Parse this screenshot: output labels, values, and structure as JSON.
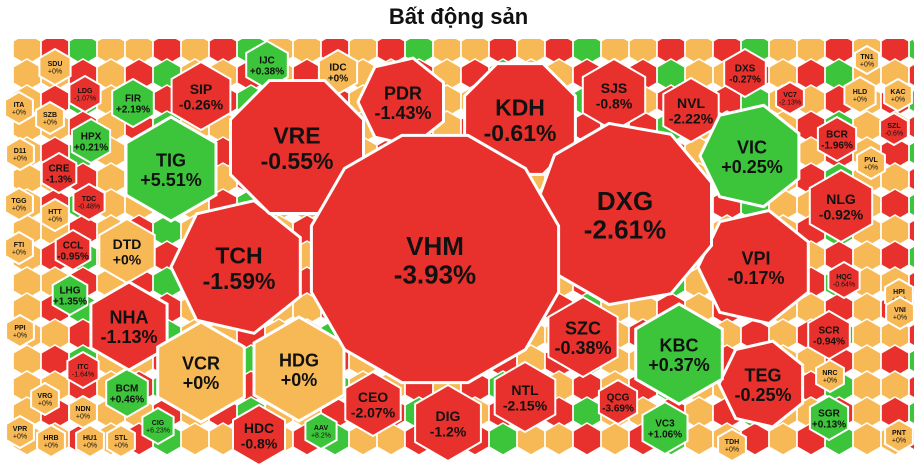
{
  "title": "Bất động sản",
  "colors": {
    "up": "#3cc43a",
    "down": "#e8312c",
    "flat": "#f7b955",
    "ceiling": "#c23bd9",
    "floor": "#2fa8e0",
    "border": "#ffffff",
    "text": "#111111"
  },
  "chart_data": {
    "type": "treemap",
    "title": "Bất động sản",
    "items": [
      {
        "symbol": "VHM",
        "change": "-3.93%",
        "status": "down",
        "size": 10
      },
      {
        "symbol": "DXG",
        "change": "-2.61%",
        "status": "down",
        "size": 7
      },
      {
        "symbol": "VRE",
        "change": "-0.55%",
        "status": "down",
        "size": 6
      },
      {
        "symbol": "TCH",
        "change": "-1.59%",
        "status": "down",
        "size": 5
      },
      {
        "symbol": "KDH",
        "change": "-0.61%",
        "status": "down",
        "size": 5
      },
      {
        "symbol": "VPI",
        "change": "-0.17%",
        "status": "down",
        "size": 4
      },
      {
        "symbol": "HDG",
        "change": "+0%",
        "status": "flat",
        "size": 3
      },
      {
        "symbol": "VCR",
        "change": "+0%",
        "status": "flat",
        "size": 3
      },
      {
        "symbol": "TIG",
        "change": "+5.51%",
        "status": "up",
        "size": 3
      },
      {
        "symbol": "VIC",
        "change": "+0.25%",
        "status": "up",
        "size": 3
      },
      {
        "symbol": "KBC",
        "change": "+0.37%",
        "status": "up",
        "size": 3
      },
      {
        "symbol": "PDR",
        "change": "-1.43%",
        "status": "down",
        "size": 3
      },
      {
        "symbol": "NHA",
        "change": "-1.13%",
        "status": "down",
        "size": 2
      },
      {
        "symbol": "TEG",
        "change": "-0.25%",
        "status": "down",
        "size": 2
      },
      {
        "symbol": "SZC",
        "change": "-0.38%",
        "status": "down",
        "size": 2
      },
      {
        "symbol": "DIG",
        "change": "-1.2%",
        "status": "down",
        "size": 2
      },
      {
        "symbol": "NLG",
        "change": "-0.92%",
        "status": "down",
        "size": 2
      },
      {
        "symbol": "SIP",
        "change": "-0.26%",
        "status": "down",
        "size": 2
      },
      {
        "symbol": "SJS",
        "change": "-0.8%",
        "status": "down",
        "size": 2
      },
      {
        "symbol": "NVL",
        "change": "-2.22%",
        "status": "down",
        "size": 1.5
      },
      {
        "symbol": "NTL",
        "change": "-2.15%",
        "status": "down",
        "size": 1.5
      },
      {
        "symbol": "CEO",
        "change": "-2.07%",
        "status": "down",
        "size": 1.5
      },
      {
        "symbol": "HDC",
        "change": "-0.8%",
        "status": "down",
        "size": 1.5
      },
      {
        "symbol": "DTD",
        "change": "+0%",
        "status": "flat",
        "size": 1.5
      },
      {
        "symbol": "DXS",
        "change": "-0.27%",
        "status": "down",
        "size": 1
      },
      {
        "symbol": "IJC",
        "change": "+0.38%",
        "status": "up",
        "size": 1
      },
      {
        "symbol": "IDC",
        "change": "+0%",
        "status": "flat",
        "size": 1
      },
      {
        "symbol": "SCR",
        "change": "-0.94%",
        "status": "down",
        "size": 1
      },
      {
        "symbol": "QCG",
        "change": "-3.69%",
        "status": "down",
        "size": 1
      },
      {
        "symbol": "VC3",
        "change": "+1.06%",
        "status": "up",
        "size": 1
      },
      {
        "symbol": "BCM",
        "change": "+0.46%",
        "status": "up",
        "size": 1
      },
      {
        "symbol": "FIR",
        "change": "+2.19%",
        "status": "up",
        "size": 1
      },
      {
        "symbol": "HPX",
        "change": "+0.21%",
        "status": "up",
        "size": 1
      },
      {
        "symbol": "BCR",
        "change": "-1.96%",
        "status": "down",
        "size": 1
      },
      {
        "symbol": "CRE",
        "change": "-1.3%",
        "status": "down",
        "size": 1
      },
      {
        "symbol": "CCL",
        "change": "-0.95%",
        "status": "down",
        "size": 1
      },
      {
        "symbol": "SGR",
        "change": "+0.13%",
        "status": "up",
        "size": 1
      },
      {
        "symbol": "LHG",
        "change": "+1.35%",
        "status": "up",
        "size": 1
      },
      {
        "symbol": "HQC",
        "change": "-0.64%",
        "status": "down",
        "size": 1
      },
      {
        "symbol": "HLD",
        "change": "+0%",
        "status": "flat",
        "size": 1
      },
      {
        "symbol": "NRC",
        "change": "+0%",
        "status": "flat",
        "size": 1
      },
      {
        "symbol": "AAV",
        "change": "+8.2%",
        "status": "up",
        "size": 1
      },
      {
        "symbol": "CIG",
        "change": "+6.23%",
        "status": "up",
        "size": 1
      },
      {
        "symbol": "LDG",
        "change": "-1.07%",
        "status": "down",
        "size": 1
      },
      {
        "symbol": "TDC",
        "change": "-0.48%",
        "status": "down",
        "size": 1
      },
      {
        "symbol": "ITC",
        "change": "-1.64%",
        "status": "down",
        "size": 1
      },
      {
        "symbol": "SZB",
        "change": "+0%",
        "status": "flat",
        "size": 1
      },
      {
        "symbol": "SDU",
        "change": "+0%",
        "status": "flat",
        "size": 1
      },
      {
        "symbol": "HTT",
        "change": "+0%",
        "status": "flat",
        "size": 1
      },
      {
        "symbol": "VRG",
        "change": "+0%",
        "status": "flat",
        "size": 1
      },
      {
        "symbol": "NDN",
        "change": "+0%",
        "status": "flat",
        "size": 1
      },
      {
        "symbol": "HRB",
        "change": "+0%",
        "status": "flat",
        "size": 1
      },
      {
        "symbol": "VPR",
        "change": "+0%",
        "status": "flat",
        "size": 1
      },
      {
        "symbol": "PPI",
        "change": "+0%",
        "status": "flat",
        "size": 1
      },
      {
        "symbol": "FTI",
        "change": "+0%",
        "status": "flat",
        "size": 1
      },
      {
        "symbol": "TGG",
        "change": "+0%",
        "status": "flat",
        "size": 1
      },
      {
        "symbol": "D11",
        "change": "+0%",
        "status": "flat",
        "size": 1
      },
      {
        "symbol": "ITA",
        "change": "+0%",
        "status": "flat",
        "size": 1
      },
      {
        "symbol": "KAC",
        "change": "+0%",
        "status": "flat",
        "size": 1
      },
      {
        "symbol": "PVL",
        "change": "+0%",
        "status": "flat",
        "size": 1
      },
      {
        "symbol": "HPI",
        "change": "+0%",
        "status": "flat",
        "size": 1
      },
      {
        "symbol": "VNI",
        "change": "+0%",
        "status": "flat",
        "size": 1
      },
      {
        "symbol": "TN1",
        "change": "+0%",
        "status": "flat",
        "size": 1
      },
      {
        "symbol": "TDH",
        "change": "+0%",
        "status": "flat",
        "size": 1
      },
      {
        "symbol": "PNT",
        "change": "+0%",
        "status": "flat",
        "size": 1
      },
      {
        "symbol": "SZL",
        "change": "-0.6%",
        "status": "down",
        "size": 1
      },
      {
        "symbol": "VC7",
        "change": "-2.13%",
        "status": "down",
        "size": 1
      },
      {
        "symbol": "HU1",
        "change": "+0%",
        "status": "flat",
        "size": 1
      },
      {
        "symbol": "STL",
        "change": "+0%",
        "status": "flat",
        "size": 1
      }
    ]
  }
}
